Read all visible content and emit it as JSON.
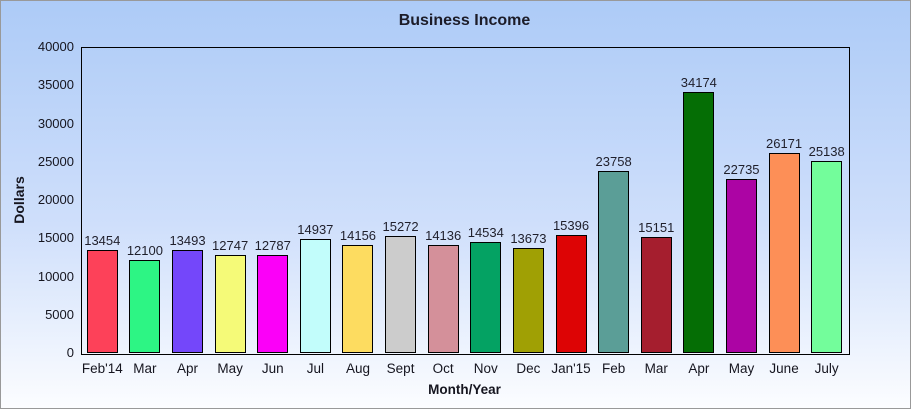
{
  "window": {
    "border_color": "#999999",
    "background_top": "#adcbf7",
    "background_bottom": "#fcfdff"
  },
  "chart_data": {
    "type": "bar",
    "title": "Business Income",
    "xlabel": "Month/Year",
    "ylabel": "Dollars",
    "ylim": [
      0,
      40000
    ],
    "yticks": [
      0,
      5000,
      10000,
      15000,
      20000,
      25000,
      30000,
      35000,
      40000
    ],
    "grid": false,
    "legend": false,
    "value_labels_shown": true,
    "categories": [
      "Feb'14",
      "Mar",
      "Apr",
      "May",
      "Jun",
      "Jul",
      "Aug",
      "Sept",
      "Oct",
      "Nov",
      "Dec",
      "Jan'15",
      "Feb",
      "Mar",
      "Apr",
      "May",
      "June",
      "July"
    ],
    "values": [
      13454,
      12100,
      13493,
      12747,
      12787,
      14937,
      14156,
      15272,
      14136,
      14534,
      13673,
      15396,
      23758,
      15151,
      34174,
      22735,
      26171,
      25138
    ],
    "bar_colors": [
      "#fd4159",
      "#2df584",
      "#7447fa",
      "#f5fa78",
      "#fb00f8",
      "#c2fdfb",
      "#fddc60",
      "#cccccc",
      "#d4909a",
      "#04a263",
      "#a0a004",
      "#dd0405",
      "#5b9e97",
      "#a51e2e",
      "#056e05",
      "#ac04a4",
      "#fd8f57",
      "#73fd9b"
    ],
    "bar_border_color": "#000000"
  }
}
